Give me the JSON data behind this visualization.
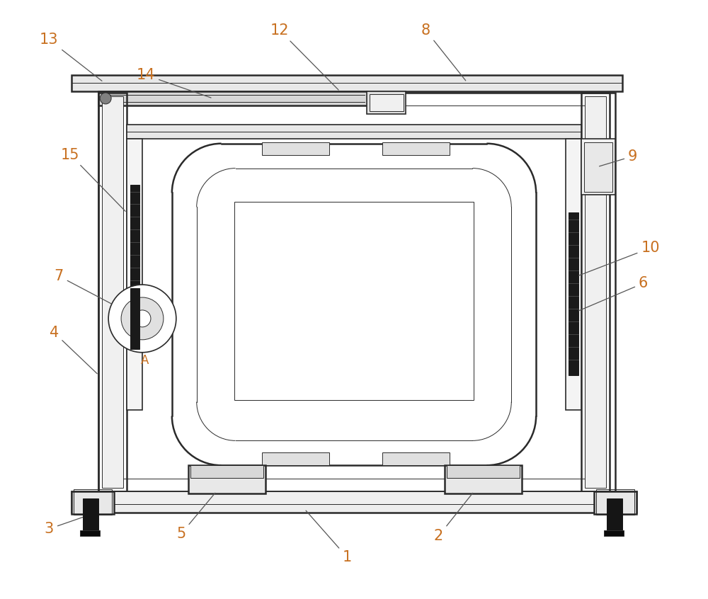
{
  "background_color": "#ffffff",
  "line_color": "#2a2a2a",
  "label_color": "#c87020",
  "label_fontsize": 15,
  "label_A_color": "#c87020",
  "fig_width": 10.0,
  "fig_height": 8.46
}
